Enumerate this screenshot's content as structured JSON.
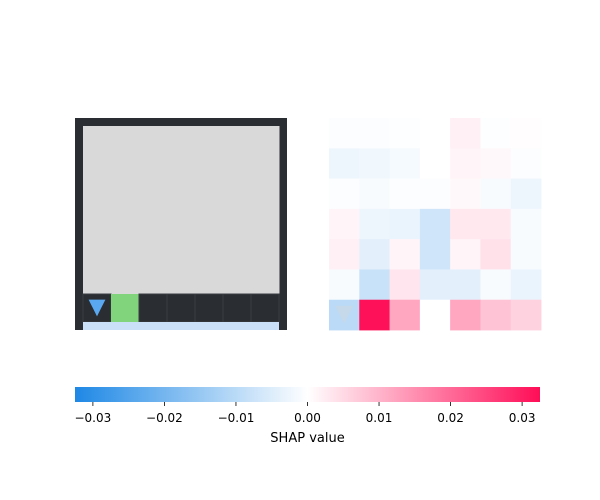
{
  "chart_data": {
    "type": "heatmap",
    "title": "",
    "panels": [
      {
        "name": "observation",
        "kind": "image",
        "grid_rows": 7,
        "grid_cols": 7,
        "colors": {
          "wall": "#2a2d31",
          "floor": "#d9d9d9",
          "goal": "#82d47c",
          "agent": "#5aa8f0",
          "highlight": "#c9e0f8",
          "border": "#3a3d42"
        },
        "cells": [
          [
            "floor",
            "floor",
            "floor",
            "floor",
            "floor",
            "floor",
            "floor"
          ],
          [
            "floor",
            "floor",
            "floor",
            "floor",
            "floor",
            "floor",
            "floor"
          ],
          [
            "floor",
            "floor",
            "floor",
            "floor",
            "floor",
            "floor",
            "floor"
          ],
          [
            "floor",
            "floor",
            "floor",
            "floor",
            "floor",
            "floor",
            "floor"
          ],
          [
            "floor",
            "floor",
            "floor",
            "floor",
            "floor",
            "floor",
            "floor"
          ],
          [
            "floor",
            "floor",
            "floor",
            "floor",
            "floor",
            "floor",
            "floor"
          ],
          [
            "agent",
            "goal",
            "wall",
            "wall",
            "wall",
            "wall",
            "wall"
          ]
        ],
        "agent_direction": "down"
      },
      {
        "name": "shap-values",
        "kind": "heatmap",
        "grid_rows": 7,
        "grid_cols": 7,
        "values": [
          [
            -0.0005,
            -0.0005,
            -0.0003,
            0.0,
            0.002,
            -0.0003,
            0.0003
          ],
          [
            -0.0025,
            -0.002,
            -0.0015,
            0.0,
            0.0015,
            0.001,
            -0.0005
          ],
          [
            -0.0005,
            -0.001,
            -0.0005,
            -0.0005,
            0.001,
            -0.001,
            -0.0025
          ],
          [
            0.0015,
            -0.0025,
            -0.003,
            -0.007,
            0.003,
            0.003,
            -0.001
          ],
          [
            0.002,
            -0.004,
            0.0015,
            -0.007,
            0.0015,
            0.004,
            -0.001
          ],
          [
            -0.001,
            -0.008,
            0.0035,
            -0.004,
            -0.004,
            -0.001,
            -0.003
          ],
          [
            -0.01,
            0.032,
            0.012,
            0.0,
            0.012,
            0.008,
            0.006
          ]
        ],
        "overlay_agent_direction": "down"
      }
    ],
    "colorbar": {
      "label": "SHAP value",
      "vmin": -0.0325,
      "vmax": 0.0325,
      "ticks": [
        -0.03,
        -0.02,
        -0.01,
        0.0,
        0.01,
        0.02,
        0.03
      ],
      "tick_labels": [
        "−0.03",
        "−0.02",
        "−0.01",
        "0.00",
        "0.01",
        "0.02",
        "0.03"
      ],
      "colormap": {
        "negative": "#1e88e5",
        "neutral": "#ffffff",
        "positive": "#ff0d57"
      }
    }
  }
}
